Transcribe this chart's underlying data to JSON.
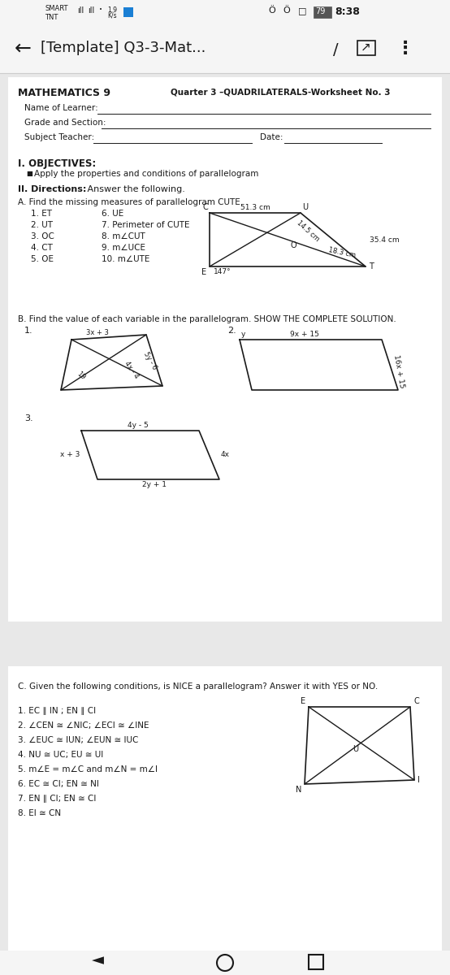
{
  "bg_color": "#e8e8e8",
  "page_bg": "#ffffff",
  "title_left": "MATHEMATICS 9",
  "title_right": "Quarter 3 –QUADRILATERALS-Worksheet No. 3",
  "partA_items_col1": [
    "1. ET",
    "2. UT",
    "3. OC",
    "4. CT",
    "5. OE"
  ],
  "partA_items_col2": [
    "6. UE",
    "7. Perimeter of CUTE",
    "8. m∠CUT",
    "9. m∠UCE",
    "10. m∠UTE"
  ],
  "partC_items": [
    "1. EC ∥ IN ; EN ∥ CI",
    "2. ∠CEN ≅ ∠NIC; ∠ECI ≅ ∠INE",
    "3. ∠EUC ≅ IUN; ∠EUN ≅ IUC",
    "4. NU ≅ UC; EU ≅ UI",
    "5. m∠E = m∠C and m∠N = m∠I",
    "6. EC ≅ CI; EN ≅ NI",
    "7. EN ∥ CI; EN ≅ CI",
    "8. EI ≅ CN"
  ],
  "font_color": "#1a1a1a",
  "line_color": "#1a1a1a"
}
